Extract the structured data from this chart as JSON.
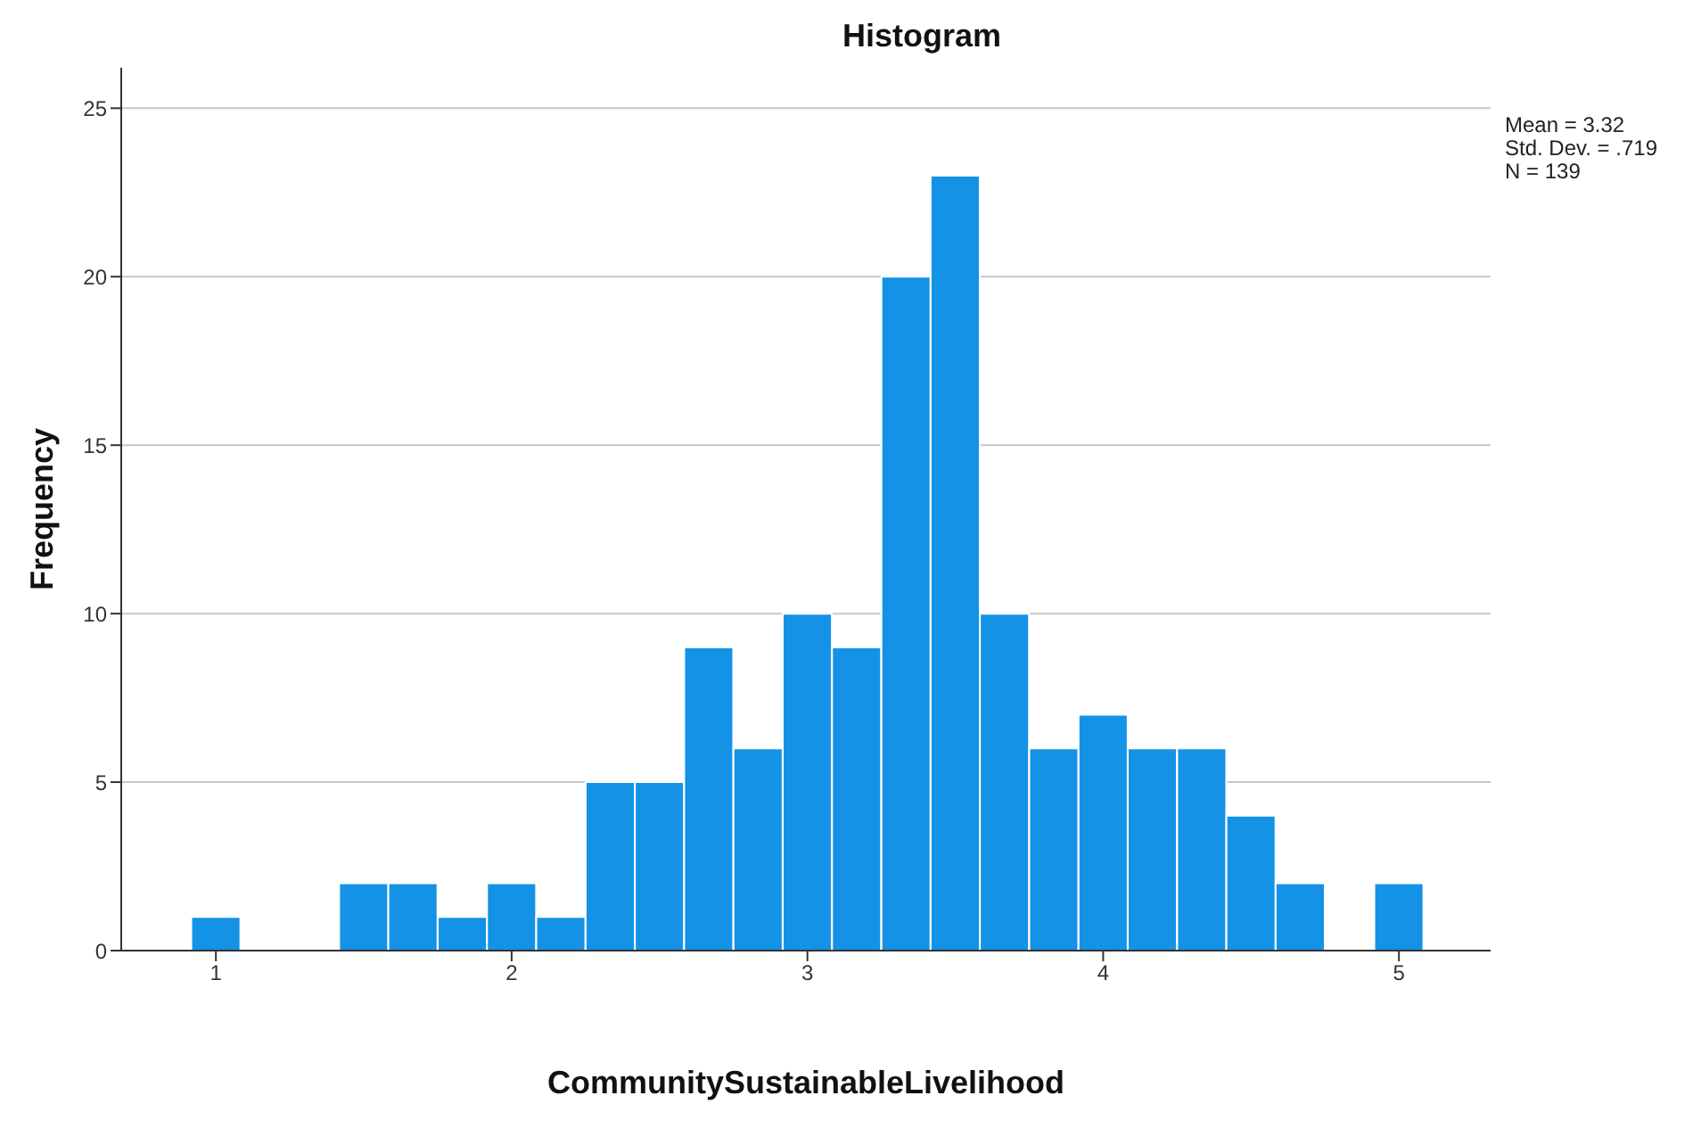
{
  "chart_data": {
    "type": "histogram",
    "title": "Histogram",
    "xlabel": "CommunitySustainableLivelihood",
    "ylabel": "Frequency",
    "bins": [
      0.917,
      1.083,
      1.25,
      1.417,
      1.583,
      1.75,
      1.917,
      2.083,
      2.25,
      2.417,
      2.583,
      2.75,
      2.917,
      3.083,
      3.25,
      3.417,
      3.583,
      3.75,
      3.917,
      4.083,
      4.25,
      4.417,
      4.583,
      4.75,
      4.917,
      5.083
    ],
    "values": [
      1,
      0,
      0,
      2,
      2,
      1,
      2,
      1,
      5,
      5,
      9,
      6,
      10,
      9,
      20,
      23,
      10,
      6,
      7,
      6,
      6,
      4,
      2,
      0,
      2
    ],
    "color": "#1492e6",
    "xlim": [
      0.68,
      5.31
    ],
    "xticks": [
      1,
      2,
      3,
      4,
      5
    ],
    "ylim": [
      0,
      26.2
    ],
    "yticks": [
      0,
      5,
      10,
      15,
      20,
      25
    ],
    "grid": "y",
    "annotations": [
      "Mean = 3.32",
      "Std. Dev. = .719",
      "N = 139"
    ]
  }
}
